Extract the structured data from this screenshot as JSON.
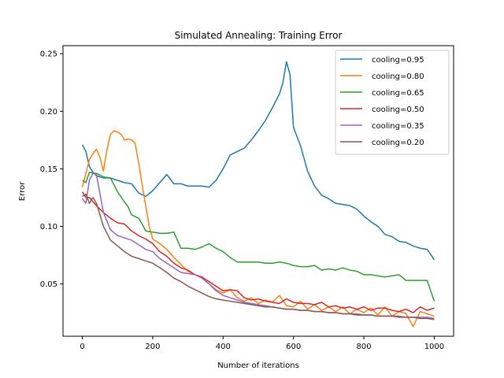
{
  "chart_data": {
    "type": "line",
    "title": "Simulated Annealing: Training Error",
    "xlabel": "Number of iterations",
    "ylabel": "Error",
    "xlim": [
      -55,
      1055
    ],
    "ylim": [
      0.0045,
      0.257
    ],
    "xticks": [
      0,
      200,
      400,
      600,
      800,
      1000
    ],
    "yticks": [
      0.05,
      0.1,
      0.15,
      0.2,
      0.25
    ],
    "ytick_labels": [
      "0.05",
      "0.10",
      "0.15",
      "0.20",
      "0.25"
    ],
    "legend_position": "top-right",
    "series": [
      {
        "name": "cooling=0.95",
        "color": "#1f77b4",
        "x": [
          0,
          10,
          20,
          30,
          40,
          50,
          60,
          80,
          100,
          120,
          140,
          160,
          180,
          200,
          220,
          240,
          260,
          280,
          300,
          320,
          340,
          360,
          380,
          400,
          420,
          440,
          460,
          480,
          500,
          520,
          540,
          560,
          570,
          580,
          590,
          600,
          620,
          640,
          660,
          680,
          700,
          720,
          740,
          760,
          780,
          800,
          820,
          840,
          860,
          880,
          900,
          920,
          940,
          960,
          980,
          1000
        ],
        "y": [
          0.171,
          0.165,
          0.152,
          0.147,
          0.144,
          0.143,
          0.142,
          0.142,
          0.14,
          0.138,
          0.137,
          0.129,
          0.126,
          0.131,
          0.138,
          0.145,
          0.137,
          0.137,
          0.135,
          0.135,
          0.135,
          0.134,
          0.14,
          0.15,
          0.162,
          0.165,
          0.168,
          0.175,
          0.183,
          0.192,
          0.203,
          0.215,
          0.225,
          0.243,
          0.232,
          0.186,
          0.17,
          0.148,
          0.135,
          0.127,
          0.124,
          0.12,
          0.119,
          0.118,
          0.115,
          0.109,
          0.104,
          0.1,
          0.093,
          0.091,
          0.087,
          0.086,
          0.083,
          0.081,
          0.08,
          0.071
        ]
      },
      {
        "name": "cooling=0.80",
        "color": "#ff7f0e",
        "x": [
          0,
          10,
          20,
          30,
          40,
          50,
          60,
          70,
          80,
          90,
          100,
          110,
          120,
          130,
          140,
          150,
          160,
          170,
          180,
          190,
          200,
          220,
          240,
          260,
          280,
          300,
          320,
          340,
          360,
          380,
          400,
          420,
          440,
          460,
          480,
          500,
          520,
          540,
          560,
          580,
          600,
          620,
          640,
          660,
          680,
          700,
          720,
          740,
          760,
          780,
          800,
          820,
          840,
          860,
          880,
          900,
          920,
          940,
          960,
          980,
          1000
        ],
        "y": [
          0.134,
          0.146,
          0.158,
          0.163,
          0.167,
          0.16,
          0.148,
          0.167,
          0.18,
          0.183,
          0.182,
          0.18,
          0.175,
          0.176,
          0.175,
          0.172,
          0.155,
          0.136,
          0.118,
          0.1,
          0.089,
          0.085,
          0.08,
          0.073,
          0.067,
          0.061,
          0.058,
          0.055,
          0.05,
          0.045,
          0.042,
          0.045,
          0.038,
          0.035,
          0.038,
          0.033,
          0.036,
          0.034,
          0.04,
          0.031,
          0.03,
          0.035,
          0.028,
          0.032,
          0.027,
          0.03,
          0.026,
          0.03,
          0.024,
          0.028,
          0.025,
          0.029,
          0.023,
          0.03,
          0.022,
          0.026,
          0.024,
          0.013,
          0.026,
          0.024,
          0.022
        ]
      },
      {
        "name": "cooling=0.65",
        "color": "#2ca02c",
        "x": [
          0,
          10,
          20,
          40,
          60,
          80,
          100,
          120,
          130,
          140,
          160,
          170,
          180,
          200,
          220,
          240,
          260,
          280,
          300,
          320,
          340,
          360,
          380,
          400,
          420,
          440,
          460,
          480,
          500,
          520,
          540,
          560,
          580,
          600,
          620,
          640,
          660,
          680,
          700,
          720,
          740,
          760,
          780,
          800,
          820,
          840,
          860,
          880,
          900,
          920,
          940,
          960,
          980,
          1000
        ],
        "y": [
          0.14,
          0.138,
          0.147,
          0.146,
          0.143,
          0.142,
          0.13,
          0.121,
          0.117,
          0.11,
          0.107,
          0.102,
          0.096,
          0.095,
          0.094,
          0.094,
          0.095,
          0.081,
          0.081,
          0.08,
          0.082,
          0.085,
          0.081,
          0.078,
          0.073,
          0.069,
          0.069,
          0.069,
          0.069,
          0.068,
          0.068,
          0.069,
          0.068,
          0.066,
          0.065,
          0.065,
          0.066,
          0.062,
          0.063,
          0.062,
          0.064,
          0.062,
          0.061,
          0.058,
          0.058,
          0.057,
          0.056,
          0.057,
          0.058,
          0.053,
          0.053,
          0.053,
          0.053,
          0.035
        ]
      },
      {
        "name": "cooling=0.50",
        "color": "#d62728",
        "x": [
          0,
          10,
          20,
          40,
          60,
          80,
          100,
          120,
          140,
          160,
          180,
          200,
          220,
          240,
          260,
          280,
          300,
          320,
          340,
          360,
          380,
          400,
          420,
          440,
          460,
          480,
          500,
          520,
          540,
          560,
          580,
          600,
          620,
          640,
          660,
          680,
          700,
          720,
          740,
          760,
          780,
          800,
          820,
          840,
          860,
          880,
          900,
          920,
          940,
          960,
          980,
          1000
        ],
        "y": [
          0.13,
          0.125,
          0.125,
          0.118,
          0.112,
          0.107,
          0.103,
          0.102,
          0.096,
          0.092,
          0.089,
          0.085,
          0.078,
          0.074,
          0.068,
          0.064,
          0.062,
          0.058,
          0.056,
          0.052,
          0.048,
          0.044,
          0.045,
          0.044,
          0.038,
          0.036,
          0.037,
          0.035,
          0.034,
          0.033,
          0.037,
          0.034,
          0.033,
          0.033,
          0.032,
          0.034,
          0.03,
          0.031,
          0.029,
          0.03,
          0.028,
          0.03,
          0.027,
          0.029,
          0.029,
          0.027,
          0.026,
          0.028,
          0.025,
          0.03,
          0.027,
          0.029
        ]
      },
      {
        "name": "cooling=0.35",
        "color": "#9467bd",
        "x": [
          0,
          10,
          20,
          30,
          40,
          60,
          80,
          100,
          120,
          140,
          160,
          180,
          200,
          220,
          240,
          260,
          280,
          300,
          320,
          340,
          360,
          380,
          400,
          420,
          440,
          460,
          480,
          500,
          520,
          540,
          560,
          580,
          600,
          620,
          640,
          660,
          680,
          700,
          720,
          740,
          760,
          780,
          800,
          820,
          840,
          860,
          880,
          900,
          920,
          940,
          960,
          980,
          1000
        ],
        "y": [
          0.124,
          0.12,
          0.14,
          0.146,
          0.145,
          0.112,
          0.097,
          0.092,
          0.09,
          0.088,
          0.084,
          0.08,
          0.078,
          0.072,
          0.068,
          0.064,
          0.06,
          0.059,
          0.058,
          0.055,
          0.05,
          0.044,
          0.04,
          0.038,
          0.036,
          0.034,
          0.033,
          0.032,
          0.031,
          0.03,
          0.029,
          0.028,
          0.028,
          0.027,
          0.027,
          0.026,
          0.026,
          0.025,
          0.025,
          0.024,
          0.024,
          0.024,
          0.023,
          0.023,
          0.022,
          0.022,
          0.022,
          0.022,
          0.021,
          0.021,
          0.021,
          0.021,
          0.02
        ]
      },
      {
        "name": "cooling=0.20",
        "color": "#8c564b",
        "x": [
          0,
          10,
          20,
          30,
          40,
          60,
          80,
          100,
          120,
          140,
          160,
          180,
          200,
          220,
          240,
          260,
          280,
          300,
          320,
          340,
          360,
          380,
          400,
          420,
          440,
          460,
          480,
          500,
          520,
          540,
          560,
          580,
          600,
          620,
          640,
          660,
          680,
          700,
          720,
          740,
          760,
          780,
          800,
          820,
          840,
          860,
          880,
          900,
          920,
          940,
          960,
          980,
          1000
        ],
        "y": [
          0.126,
          0.128,
          0.12,
          0.125,
          0.12,
          0.1,
          0.088,
          0.083,
          0.078,
          0.074,
          0.072,
          0.07,
          0.068,
          0.064,
          0.06,
          0.055,
          0.052,
          0.048,
          0.045,
          0.042,
          0.039,
          0.037,
          0.036,
          0.035,
          0.034,
          0.033,
          0.032,
          0.031,
          0.03,
          0.03,
          0.029,
          0.028,
          0.028,
          0.027,
          0.027,
          0.026,
          0.026,
          0.025,
          0.025,
          0.024,
          0.024,
          0.023,
          0.023,
          0.023,
          0.022,
          0.022,
          0.022,
          0.021,
          0.021,
          0.021,
          0.02,
          0.02,
          0.019
        ]
      }
    ]
  }
}
